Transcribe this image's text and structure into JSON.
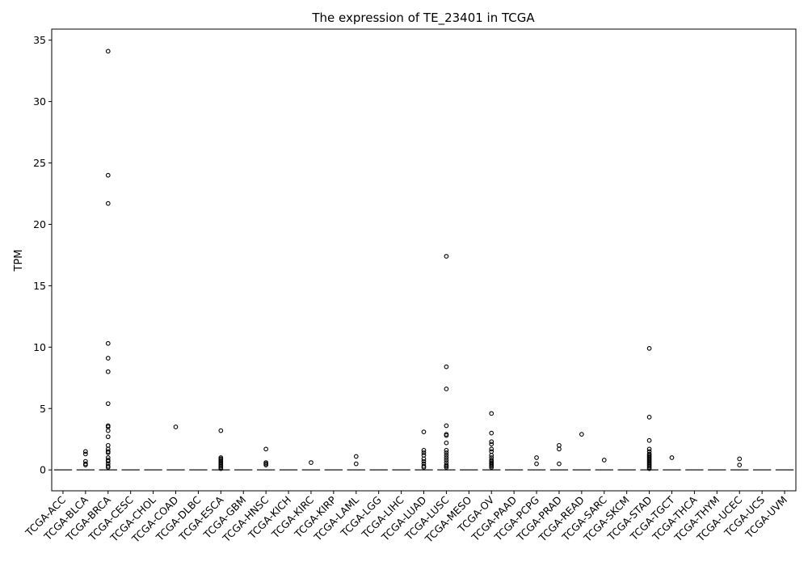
{
  "chart_data": {
    "type": "box",
    "title": "The expression of TE_23401 in TCGA",
    "xlabel": "",
    "ylabel": "TPM",
    "ylim": [
      -1.7,
      35.9
    ],
    "yticks": [
      0,
      5,
      10,
      15,
      20,
      25,
      30,
      35
    ],
    "grid": false,
    "categories": [
      "TCGA-ACC",
      "TCGA-BLCA",
      "TCGA-BRCA",
      "TCGA-CESC",
      "TCGA-CHOL",
      "TCGA-COAD",
      "TCGA-DLBC",
      "TCGA-ESCA",
      "TCGA-GBM",
      "TCGA-HNSC",
      "TCGA-KICH",
      "TCGA-KIRC",
      "TCGA-KIRP",
      "TCGA-LAML",
      "TCGA-LGG",
      "TCGA-LIHC",
      "TCGA-LUAD",
      "TCGA-LUSC",
      "TCGA-MESO",
      "TCGA-OV",
      "TCGA-PAAD",
      "TCGA-PCPG",
      "TCGA-PRAD",
      "TCGA-READ",
      "TCGA-SARC",
      "TCGA-SKCM",
      "TCGA-STAD",
      "TCGA-TGCT",
      "TCGA-THCA",
      "TCGA-THYM",
      "TCGA-UCEC",
      "TCGA-UCS",
      "TCGA-UVM"
    ],
    "medians": [
      0,
      0,
      0,
      0,
      0,
      0,
      0,
      0,
      0,
      0,
      0,
      0,
      0,
      0,
      0,
      0,
      0,
      0,
      0,
      0,
      0,
      0,
      0,
      0,
      0,
      0,
      0,
      0,
      0,
      0,
      0,
      0,
      0
    ],
    "outliers": [
      [],
      [
        1.5,
        1.3,
        0.7,
        0.5,
        0.4
      ],
      [
        34.1,
        24.0,
        21.7,
        10.3,
        9.1,
        8.0,
        5.4,
        3.6,
        3.5,
        3.2,
        2.7,
        2.0,
        1.7,
        1.5,
        1.4,
        1.0,
        0.8,
        0.7,
        0.5,
        0.3,
        0.2
      ],
      [],
      [],
      [
        3.5
      ],
      [],
      [
        3.2,
        1.0,
        0.9,
        0.8,
        0.7,
        0.6,
        0.5,
        0.4,
        0.3,
        0.2,
        0.1
      ],
      [],
      [
        1.7,
        0.6,
        0.5,
        0.4
      ],
      [],
      [
        0.6
      ],
      [],
      [
        1.1,
        0.5
      ],
      [],
      [],
      [
        3.1,
        1.6,
        1.4,
        1.2,
        0.9,
        0.7,
        0.5,
        0.3,
        0.2
      ],
      [
        17.4,
        8.4,
        6.6,
        3.6,
        2.9,
        2.8,
        2.2,
        1.6,
        1.4,
        1.2,
        1.0,
        0.8,
        0.6,
        0.4,
        0.3,
        0.2
      ],
      [],
      [
        4.6,
        3.0,
        2.3,
        2.1,
        1.7,
        1.5,
        1.2,
        1.0,
        0.8,
        0.7,
        0.6,
        0.5,
        0.4,
        0.3,
        0.2
      ],
      [],
      [
        1.0,
        0.5
      ],
      [
        2.0,
        1.7,
        0.5
      ],
      [
        2.9
      ],
      [
        0.8
      ],
      [],
      [
        9.9,
        4.3,
        2.4,
        1.7,
        1.5,
        1.3,
        1.2,
        1.1,
        1.0,
        0.9,
        0.8,
        0.7,
        0.6,
        0.5,
        0.4,
        0.3,
        0.2,
        0.1
      ],
      [
        1.0
      ],
      [],
      [],
      [
        0.9,
        0.4
      ],
      [],
      []
    ]
  }
}
